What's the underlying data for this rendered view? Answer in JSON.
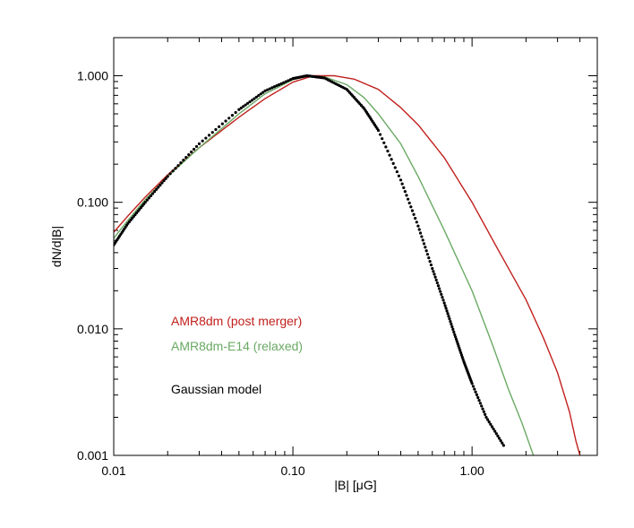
{
  "chart_data": {
    "type": "line",
    "title": "",
    "xlabel": "|B| [μG]",
    "ylabel": "dN/d|B|",
    "xscale": "log",
    "yscale": "log",
    "xlim": [
      0.01,
      5.0
    ],
    "ylim": [
      0.001,
      2.0
    ],
    "grid": false,
    "legend_position": "lower-left",
    "x_ticks": [
      {
        "value": 0.01,
        "label": "0.01"
      },
      {
        "value": 0.1,
        "label": "0.10"
      },
      {
        "value": 1.0,
        "label": "1.00"
      }
    ],
    "y_ticks": [
      {
        "value": 0.001,
        "label": "0.001"
      },
      {
        "value": 0.01,
        "label": "0.010"
      },
      {
        "value": 0.1,
        "label": "0.100"
      },
      {
        "value": 1.0,
        "label": "1.000"
      }
    ],
    "series": [
      {
        "name": "AMR8dm (post merger)",
        "color": "#c0201c",
        "style": "solid",
        "points": [
          [
            0.01,
            0.058
          ],
          [
            0.012,
            0.078
          ],
          [
            0.015,
            0.11
          ],
          [
            0.02,
            0.165
          ],
          [
            0.03,
            0.27
          ],
          [
            0.05,
            0.47
          ],
          [
            0.07,
            0.66
          ],
          [
            0.1,
            0.89
          ],
          [
            0.13,
            1.0
          ],
          [
            0.17,
            1.0
          ],
          [
            0.22,
            0.94
          ],
          [
            0.3,
            0.78
          ],
          [
            0.4,
            0.56
          ],
          [
            0.5,
            0.41
          ],
          [
            0.7,
            0.225
          ],
          [
            1.0,
            0.1
          ],
          [
            1.4,
            0.042
          ],
          [
            2.0,
            0.017
          ],
          [
            2.5,
            0.0085
          ],
          [
            3.0,
            0.0045
          ],
          [
            3.5,
            0.0022
          ],
          [
            3.8,
            0.0013
          ],
          [
            4.0,
            0.001
          ]
        ]
      },
      {
        "name": "AMR8dm-E14 (relaxed)",
        "color": "#6aaa64",
        "style": "solid",
        "points": [
          [
            0.01,
            0.052
          ],
          [
            0.012,
            0.072
          ],
          [
            0.015,
            0.105
          ],
          [
            0.02,
            0.16
          ],
          [
            0.03,
            0.27
          ],
          [
            0.05,
            0.5
          ],
          [
            0.07,
            0.72
          ],
          [
            0.1,
            0.93
          ],
          [
            0.12,
            1.0
          ],
          [
            0.15,
            0.98
          ],
          [
            0.2,
            0.85
          ],
          [
            0.25,
            0.67
          ],
          [
            0.3,
            0.5
          ],
          [
            0.4,
            0.29
          ],
          [
            0.5,
            0.16
          ],
          [
            0.7,
            0.06
          ],
          [
            1.0,
            0.02
          ],
          [
            1.3,
            0.0075
          ],
          [
            1.6,
            0.0033
          ],
          [
            1.9,
            0.0018
          ],
          [
            2.2,
            0.001
          ]
        ]
      },
      {
        "name": "Gaussian model",
        "color": "#000000",
        "style": "dotted",
        "points": [
          [
            0.01,
            0.046
          ],
          [
            0.012,
            0.068
          ],
          [
            0.015,
            0.1
          ],
          [
            0.02,
            0.16
          ],
          [
            0.03,
            0.29
          ],
          [
            0.05,
            0.54
          ],
          [
            0.07,
            0.76
          ],
          [
            0.1,
            0.95
          ],
          [
            0.12,
            1.0
          ],
          [
            0.15,
            0.96
          ],
          [
            0.2,
            0.78
          ],
          [
            0.25,
            0.55
          ],
          [
            0.3,
            0.37
          ],
          [
            0.4,
            0.15
          ],
          [
            0.5,
            0.065
          ],
          [
            0.6,
            0.03
          ],
          [
            0.7,
            0.016
          ],
          [
            0.8,
            0.009
          ],
          [
            0.9,
            0.0055
          ],
          [
            1.0,
            0.0037
          ],
          [
            1.2,
            0.002
          ],
          [
            1.5,
            0.0012
          ]
        ]
      }
    ]
  }
}
